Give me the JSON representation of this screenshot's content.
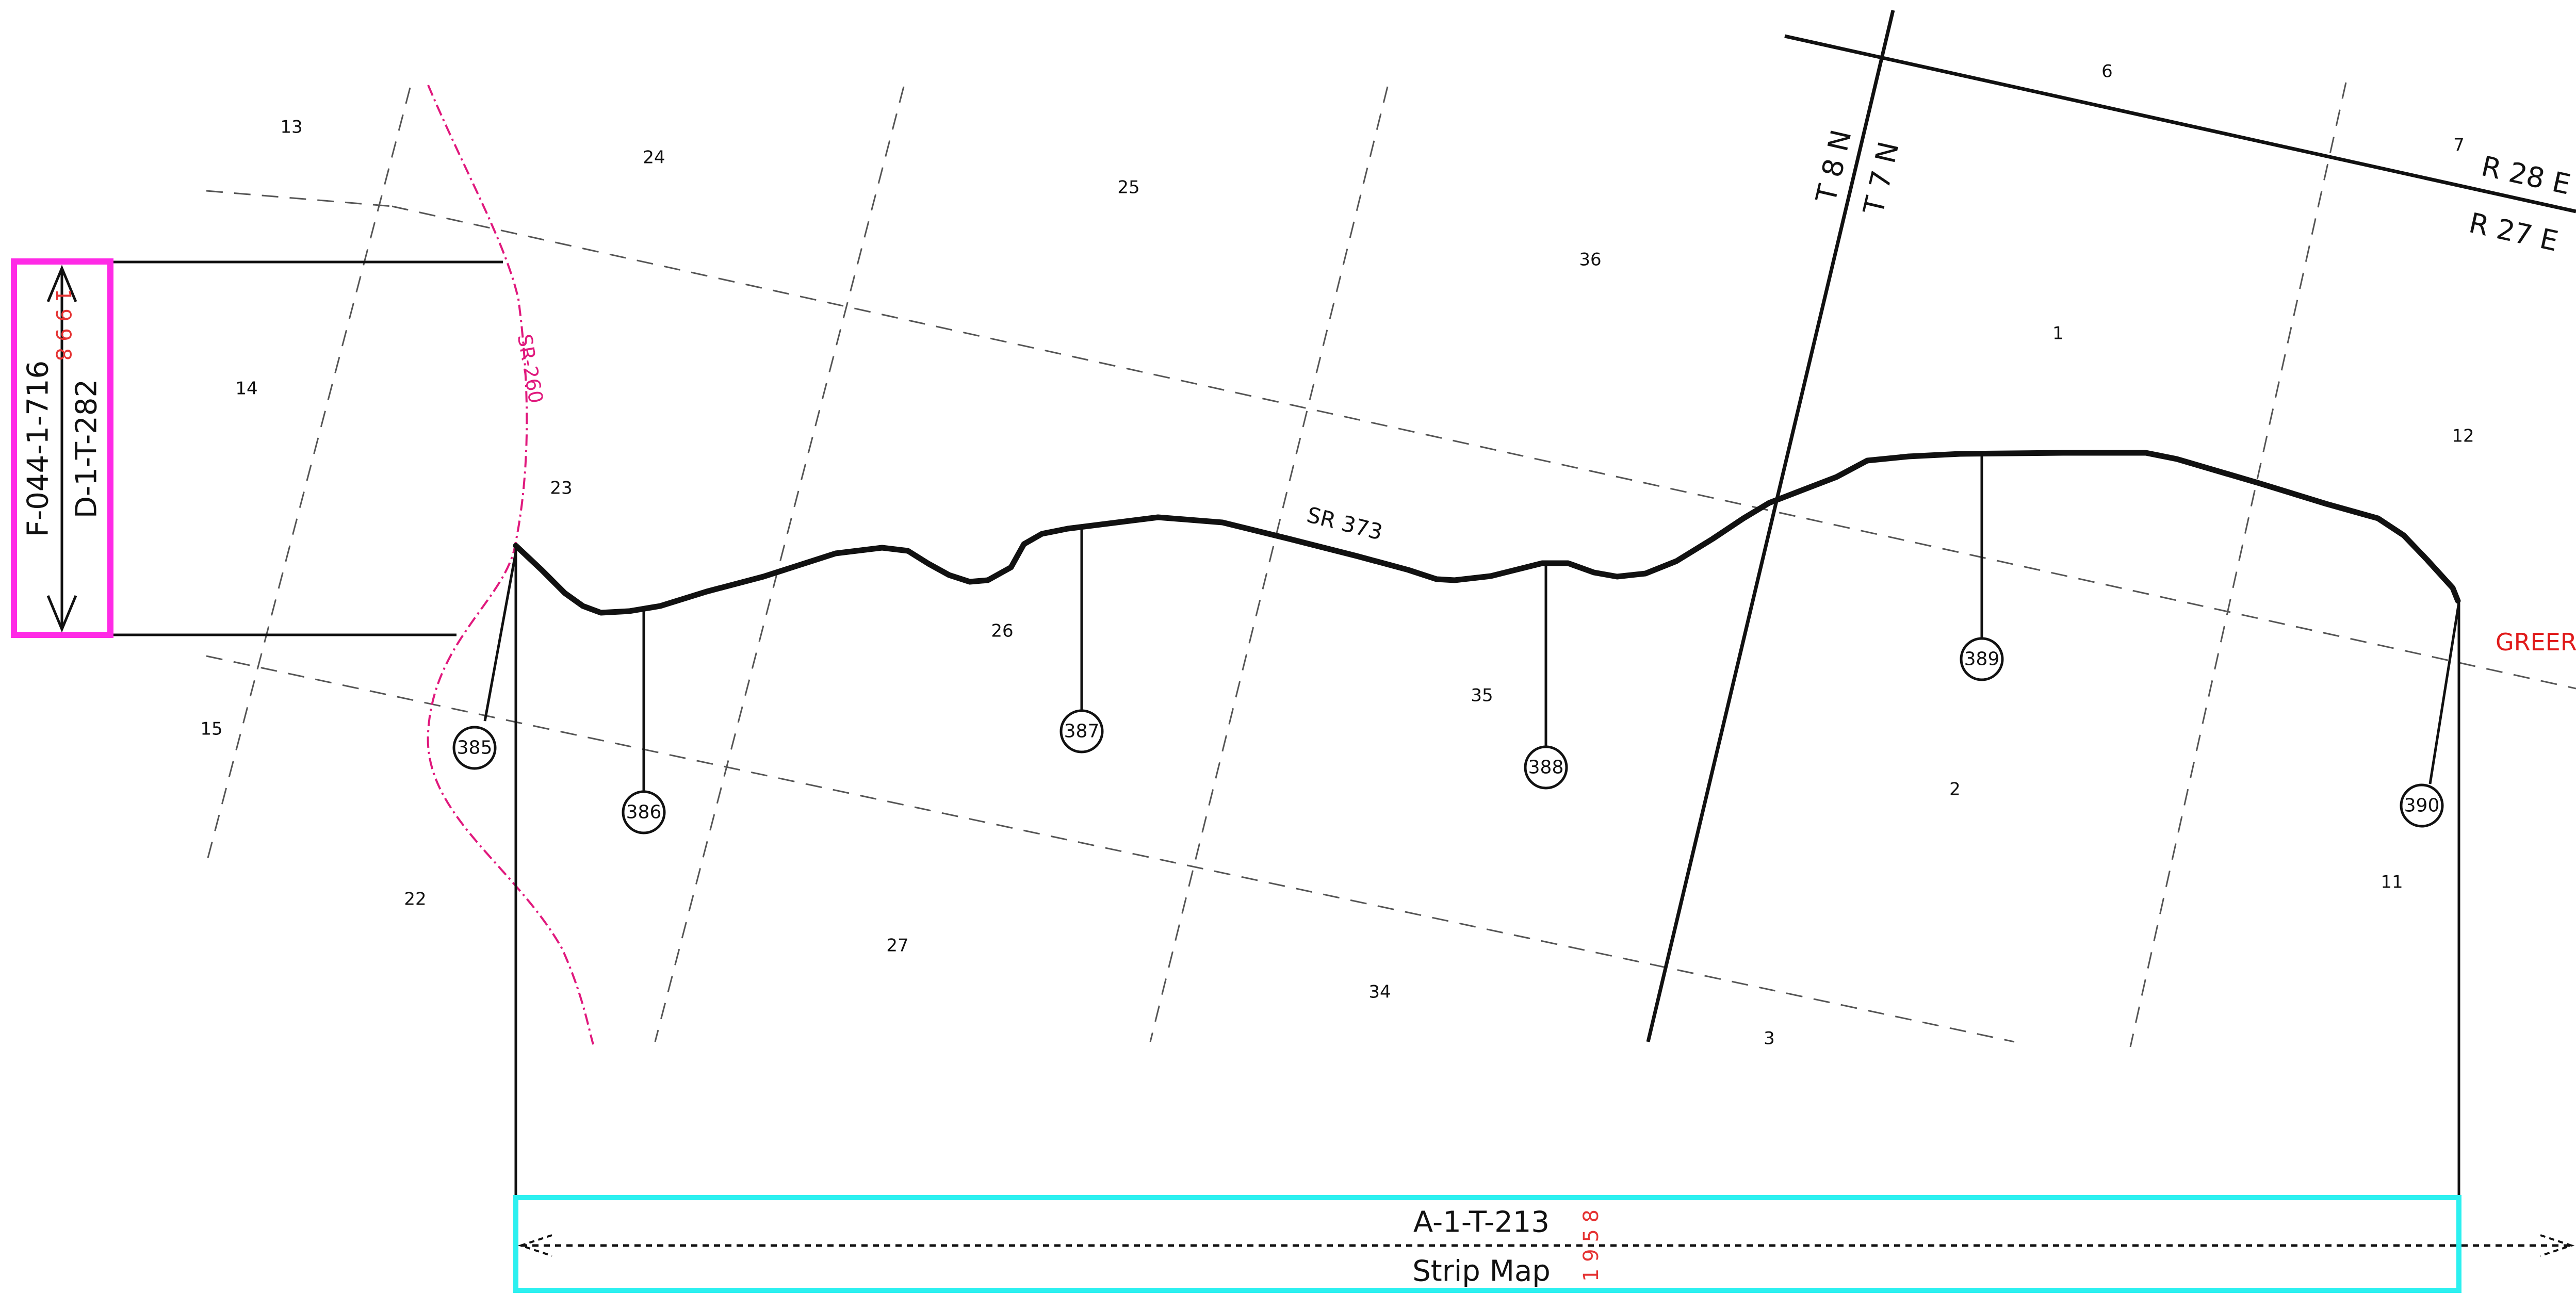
{
  "colors": {
    "line": "#111111",
    "grid": "#555555",
    "sr260": "#e0197d",
    "magenta_box": "#ff2ae6",
    "cyan_box": "#2cf0f0",
    "year_red": "#e53333",
    "label_red": "#e01a1a"
  },
  "map": {
    "sections": [
      "13",
      "24",
      "25",
      "36",
      "6",
      "7",
      "1",
      "12",
      "14",
      "23",
      "26",
      "35",
      "2",
      "11",
      "15",
      "22",
      "27",
      "34",
      "3"
    ],
    "road_label": "SR 373",
    "highway_label": "SR-260",
    "township_north": "T 8 N",
    "township_south": "T 7 N",
    "range_east": "R 28 E",
    "range_west": "R 27 E",
    "place_label": "GREER",
    "mileposts": [
      "385",
      "386",
      "387",
      "388",
      "389",
      "390"
    ]
  },
  "left_box": {
    "number_primary": "F-044-1-716",
    "number_secondary": "D-1-T-282",
    "year": "1 9 9 8"
  },
  "bottom_box": {
    "number": "A-1-T-213",
    "type": "Strip Map",
    "year": "1 9 5 8"
  }
}
